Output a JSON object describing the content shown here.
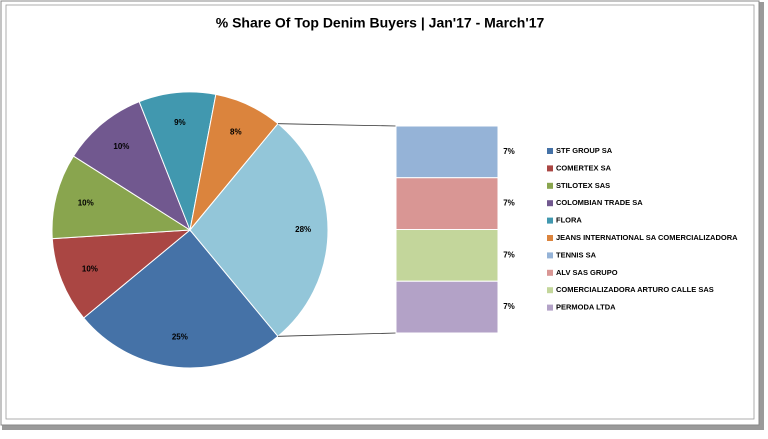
{
  "chart_data": {
    "type": "pie",
    "title": "% Share Of Top Denim Buyers | Jan'17 - March'17",
    "categories": [
      "STF GROUP SA",
      "COMERTEX SA",
      "STILOTEX SAS",
      "COLOMBIAN TRADE SA",
      "FLORA",
      "JEANS INTERNATIONAL SA COMERCIALIZADORA",
      "TENNIS SA",
      "ALV SAS GRUPO",
      "COMERCIALIZADORA ARTURO CALLE SAS",
      "PERMODA LTDA"
    ],
    "values": [
      25,
      10,
      10,
      10,
      9,
      8,
      7,
      7,
      7,
      7
    ],
    "value_labels": [
      "25%",
      "10%",
      "10%",
      "10%",
      "9%",
      "8%",
      "7%",
      "7%",
      "7%",
      "7%"
    ],
    "colors": [
      "#4572a7",
      "#aa4643",
      "#89a54e",
      "#71588f",
      "#4198af",
      "#db843d",
      "#95b3d7",
      "#d99694",
      "#c3d69b",
      "#b3a2c7"
    ],
    "other": {
      "value": 28,
      "value_label": "28%",
      "color": "#93c6d9"
    }
  }
}
